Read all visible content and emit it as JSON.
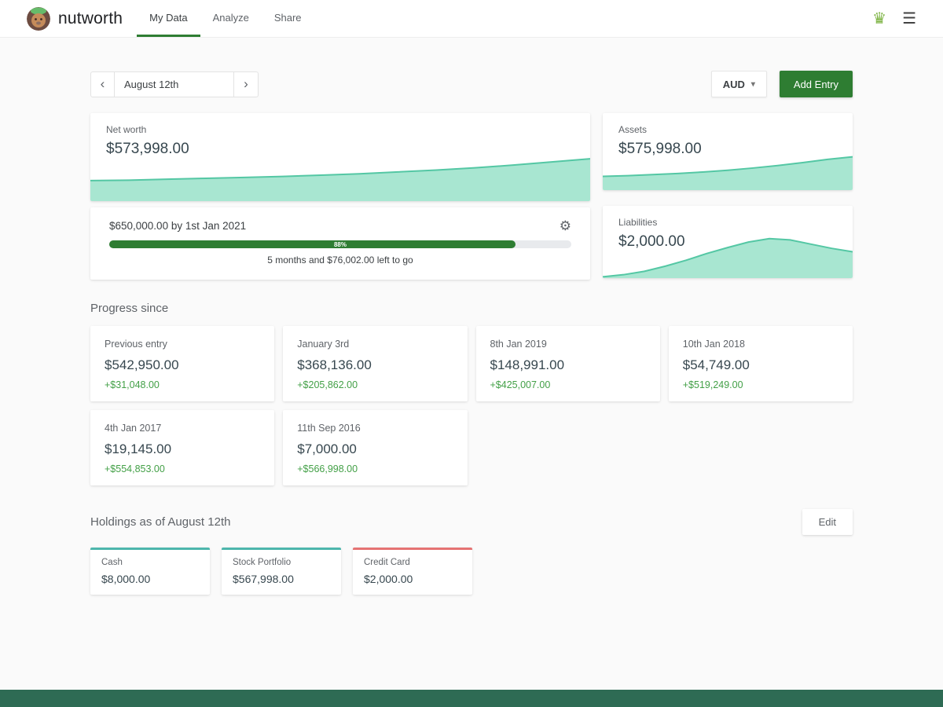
{
  "header": {
    "brand": "nutworth",
    "nav": [
      {
        "label": "My Data",
        "active": true
      },
      {
        "label": "Analyze",
        "active": false
      },
      {
        "label": "Share",
        "active": false
      }
    ]
  },
  "controls": {
    "date": "August 12th",
    "currency": "AUD",
    "add_entry_label": "Add Entry"
  },
  "summary": {
    "net_worth": {
      "label": "Net worth",
      "value": "$573,998.00"
    },
    "assets": {
      "label": "Assets",
      "value": "$575,998.00"
    },
    "liabilities": {
      "label": "Liabilities",
      "value": "$2,000.00"
    }
  },
  "goal": {
    "title": "$650,000.00 by 1st Jan 2021",
    "percent": "88%",
    "remaining": "5 months and $76,002.00 left to go"
  },
  "progress_since": {
    "heading": "Progress since",
    "entries": [
      {
        "label": "Previous entry",
        "value": "$542,950.00",
        "delta": "+$31,048.00"
      },
      {
        "label": "January 3rd",
        "value": "$368,136.00",
        "delta": "+$205,862.00"
      },
      {
        "label": "8th Jan 2019",
        "value": "$148,991.00",
        "delta": "+$425,007.00"
      },
      {
        "label": "10th Jan 2018",
        "value": "$54,749.00",
        "delta": "+$519,249.00"
      },
      {
        "label": "4th Jan 2017",
        "value": "$19,145.00",
        "delta": "+$554,853.00"
      },
      {
        "label": "11th Sep 2016",
        "value": "$7,000.00",
        "delta": "+$566,998.00"
      }
    ]
  },
  "holdings": {
    "heading": "Holdings as of August 12th",
    "edit_label": "Edit",
    "items": [
      {
        "label": "Cash",
        "value": "$8,000.00",
        "accent": "#4db6ac"
      },
      {
        "label": "Stock Portfolio",
        "value": "$567,998.00",
        "accent": "#4db6ac"
      },
      {
        "label": "Credit Card",
        "value": "$2,000.00",
        "accent": "#e57373"
      }
    ]
  },
  "colors": {
    "accent_green": "#2e7d32",
    "spark_fill": "#a8e6d1",
    "spark_stroke": "#54c7a4",
    "delta_green": "#43a047",
    "footer": "#2e6b54"
  },
  "chart_data": [
    {
      "type": "area",
      "name": "net_worth_spark",
      "values": [
        0.45,
        0.46,
        0.48,
        0.5,
        0.52,
        0.54,
        0.57,
        0.6,
        0.64,
        0.68,
        0.73,
        0.79,
        0.86,
        0.93
      ]
    },
    {
      "type": "area",
      "name": "assets_spark",
      "values": [
        0.38,
        0.4,
        0.43,
        0.46,
        0.5,
        0.55,
        0.61,
        0.68,
        0.76,
        0.85,
        0.92
      ]
    },
    {
      "type": "area",
      "name": "liabilities_spark",
      "values": [
        0.03,
        0.08,
        0.16,
        0.28,
        0.42,
        0.58,
        0.72,
        0.85,
        0.93,
        0.9,
        0.8,
        0.7,
        0.62
      ]
    }
  ]
}
